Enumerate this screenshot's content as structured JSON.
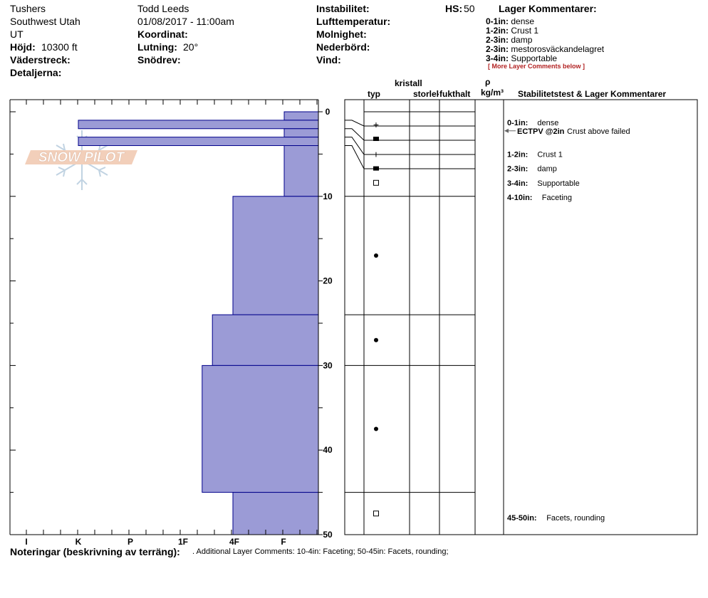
{
  "header": {
    "location": "Tushers",
    "region": "Southwest Utah",
    "state": "UT",
    "elevation_label": "Höjd:",
    "elevation_value": "10300 ft",
    "aspect_label": "Väderstreck:",
    "details_label": "Detaljerna:",
    "observer": "Todd Leeds",
    "datetime": "01/08/2017 - 11:00am",
    "coord_label": "Koordinat:",
    "slope_label": "Lutning:",
    "slope_value": "20°",
    "drift_label": "Snödrev:",
    "instability_label": "Instabilitet:",
    "airtemp_label": "Lufttemperatur:",
    "sky_label": "Molnighet:",
    "precip_label": "Nederbörd:",
    "wind_label": "Vind:",
    "hs_label": "HS:",
    "hs_value": "50",
    "layer_comments_title": "Lager Kommentarer:",
    "layer_comments": [
      {
        "range": "0-1in:",
        "text": "dense"
      },
      {
        "range": "1-2in:",
        "text": "Crust 1"
      },
      {
        "range": "2-3in:",
        "text": "damp"
      },
      {
        "range": "2-3in:",
        "text": "mestorosväckandelagret"
      },
      {
        "range": "3-4in:",
        "text": "Supportable"
      }
    ],
    "more_comments": "[ More Layer Comments below ]"
  },
  "logo_text": "SNOW PILOT",
  "columns": {
    "typ": "typ",
    "kristall": "kristall",
    "storlek": "storlek",
    "fukthalt": "fukthalt",
    "rho": "ρ",
    "density_unit": "kg/m³",
    "stability": "Stabilitetstest & Lager Kommentarer"
  },
  "right_comments": [
    {
      "range": "0-1in:",
      "text": "dense",
      "depth": 1.25
    },
    {
      "range": "1-2in:",
      "text": "Crust 1",
      "depth": 5
    },
    {
      "range": "2-3in:",
      "text": "damp",
      "depth": 6.7
    },
    {
      "range": "3-4in:",
      "text": "Supportable",
      "depth": 8.4
    },
    {
      "range": "4-10in:",
      "text": "Faceting",
      "depth": 10.1
    },
    {
      "range": "45-50in:",
      "text": "Facets, rounding",
      "depth": 48
    }
  ],
  "stability_test": {
    "label": "ECTPV @2in",
    "text": "Crust above failed",
    "depth": 2
  },
  "notes_label": "Noteringar (beskrivning av terräng):",
  "notes_text": ". Additional Layer Comments: 10-4in: Faceting; 50-45in: Facets, rounding;",
  "colors": {
    "hardness_fill": "#9b9bd6",
    "hardness_stroke": "#00008b",
    "test_color": "#b22222"
  },
  "chart_data": {
    "type": "bar",
    "ylabel": "",
    "xlabel": "",
    "depth_range": [
      0,
      50
    ],
    "depth_ticks": [
      "0",
      "10",
      "20",
      "30",
      "40",
      "50"
    ],
    "hardness_ticks": [
      "I",
      "K",
      "P",
      "1F",
      "4F",
      "F"
    ],
    "hardness_scale_note": "hand hardness index: F=1, 4F=2, 1F=3, P=4, K=5, I=6",
    "layers": [
      {
        "top": 0,
        "bottom": 1,
        "hardness": 1
      },
      {
        "top": 1,
        "bottom": 2,
        "hardness": 5
      },
      {
        "top": 2,
        "bottom": 3,
        "hardness": 1
      },
      {
        "top": 3,
        "bottom": 4,
        "hardness": 5
      },
      {
        "top": 4,
        "bottom": 10,
        "hardness": 1
      },
      {
        "top": 10,
        "bottom": 24,
        "hardness": 2
      },
      {
        "top": 24,
        "bottom": 30,
        "hardness": 2.4
      },
      {
        "top": 30,
        "bottom": 45,
        "hardness": 2.6
      },
      {
        "top": 45,
        "bottom": 50,
        "hardness": 2
      }
    ],
    "crystal_types": [
      {
        "depth": 1.5,
        "symbol": "+"
      },
      {
        "depth": 3.2,
        "symbol": "■"
      },
      {
        "depth": 5,
        "symbol": "+"
      },
      {
        "depth": 6.7,
        "symbol": "■"
      },
      {
        "depth": 8.4,
        "symbol": "□"
      },
      {
        "depth": 17,
        "symbol": "●"
      },
      {
        "depth": 27,
        "symbol": "●"
      },
      {
        "depth": 37.5,
        "symbol": "●"
      },
      {
        "depth": 47.5,
        "symbol": "□"
      }
    ]
  }
}
